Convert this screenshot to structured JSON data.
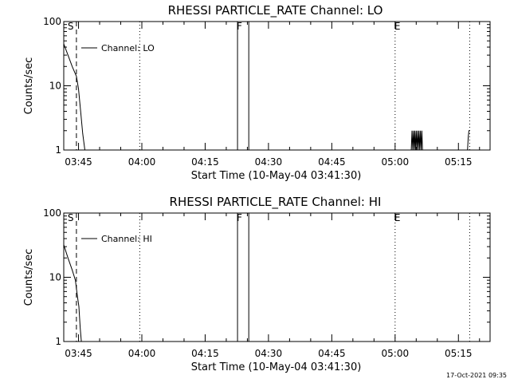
{
  "chart_data": [
    {
      "type": "line",
      "title": "RHESSI PARTICLE_RATE Channel: LO",
      "xlabel": "Start Time (10-May-04 03:41:30)",
      "ylabel": "Counts/sec",
      "yscale": "log",
      "ylim": [
        1,
        100
      ],
      "y_ticks": [
        "1",
        "10",
        "100"
      ],
      "xlim": [
        "03:41:30",
        "05:22:30"
      ],
      "x_ticks": [
        "03:45",
        "04:00",
        "04:15",
        "04:30",
        "04:45",
        "05:00",
        "05:15"
      ],
      "legend": {
        "label": "Channel: LO",
        "placement": "top-left"
      },
      "grid": false,
      "markers": [
        {
          "label": "S",
          "time": "03:44:30",
          "style": "dashed"
        },
        {
          "label": "",
          "time": "03:59:30",
          "style": "dotted"
        },
        {
          "label": "F",
          "time": "04:22:40",
          "style": "solid"
        },
        {
          "label": "",
          "time": "04:25:20",
          "style": "solid"
        },
        {
          "label": "E",
          "time": "05:00:00",
          "style": "dotted"
        },
        {
          "label": "",
          "time": "05:17:40",
          "style": "dotted"
        }
      ],
      "series": [
        {
          "points": [
            {
              "x": "03:41:30",
              "y": 45
            },
            {
              "x": "03:42:30",
              "y": 30
            },
            {
              "x": "03:43:30",
              "y": 20
            },
            {
              "x": "03:44:30",
              "y": 14
            },
            {
              "x": "03:45:00",
              "y": 9
            },
            {
              "x": "03:45:30",
              "y": 4
            },
            {
              "x": "03:46:00",
              "y": 1.8
            },
            {
              "x": "03:46:30",
              "y": 1.0
            }
          ]
        },
        {
          "points": [
            {
              "x": "05:03:50",
              "y": 1.0
            },
            {
              "x": "05:04:00",
              "y": 2.0
            },
            {
              "x": "05:04:10",
              "y": 1.0
            },
            {
              "x": "05:04:20",
              "y": 2.0
            },
            {
              "x": "05:04:30",
              "y": 1.0
            },
            {
              "x": "05:04:40",
              "y": 2.0
            },
            {
              "x": "05:04:50",
              "y": 1.0
            },
            {
              "x": "05:05:00",
              "y": 2.0
            },
            {
              "x": "05:05:10",
              "y": 1.0
            },
            {
              "x": "05:05:20",
              "y": 2.0
            },
            {
              "x": "05:05:30",
              "y": 1.0
            },
            {
              "x": "05:05:40",
              "y": 2.0
            },
            {
              "x": "05:05:50",
              "y": 1.0
            },
            {
              "x": "05:06:00",
              "y": 2.0
            },
            {
              "x": "05:06:10",
              "y": 1.0
            },
            {
              "x": "05:06:20",
              "y": 2.0
            },
            {
              "x": "05:06:30",
              "y": 1.0
            }
          ]
        },
        {
          "points": [
            {
              "x": "05:17:10",
              "y": 1.0
            },
            {
              "x": "05:17:20",
              "y": 1.6
            },
            {
              "x": "05:17:30",
              "y": 2.0
            },
            {
              "x": "05:17:40",
              "y": 2.0
            }
          ]
        }
      ]
    },
    {
      "type": "line",
      "title": "RHESSI PARTICLE_RATE Channel: HI",
      "xlabel": "Start Time (10-May-04 03:41:30)",
      "ylabel": "Counts/sec",
      "yscale": "log",
      "ylim": [
        1,
        100
      ],
      "y_ticks": [
        "1",
        "10",
        "100"
      ],
      "xlim": [
        "03:41:30",
        "05:22:30"
      ],
      "x_ticks": [
        "03:45",
        "04:00",
        "04:15",
        "04:30",
        "04:45",
        "05:00",
        "05:15"
      ],
      "legend": {
        "label": "Channel: HI",
        "placement": "top-left"
      },
      "grid": false,
      "markers": [
        {
          "label": "S",
          "time": "03:44:30",
          "style": "dashed"
        },
        {
          "label": "",
          "time": "03:59:30",
          "style": "dotted"
        },
        {
          "label": "F",
          "time": "04:22:40",
          "style": "solid"
        },
        {
          "label": "",
          "time": "04:25:20",
          "style": "solid"
        },
        {
          "label": "E",
          "time": "05:00:00",
          "style": "dotted"
        },
        {
          "label": "",
          "time": "05:17:40",
          "style": "dotted"
        }
      ],
      "series": [
        {
          "points": [
            {
              "x": "03:41:30",
              "y": 32
            },
            {
              "x": "03:42:30",
              "y": 20
            },
            {
              "x": "03:43:30",
              "y": 13
            },
            {
              "x": "03:44:15",
              "y": 9
            },
            {
              "x": "03:44:45",
              "y": 5
            },
            {
              "x": "03:45:05",
              "y": 3.5
            },
            {
              "x": "03:45:25",
              "y": 1.6
            },
            {
              "x": "03:45:40",
              "y": 1.0
            }
          ]
        }
      ]
    }
  ],
  "timestamp": "17-Oct-2021 09:35"
}
